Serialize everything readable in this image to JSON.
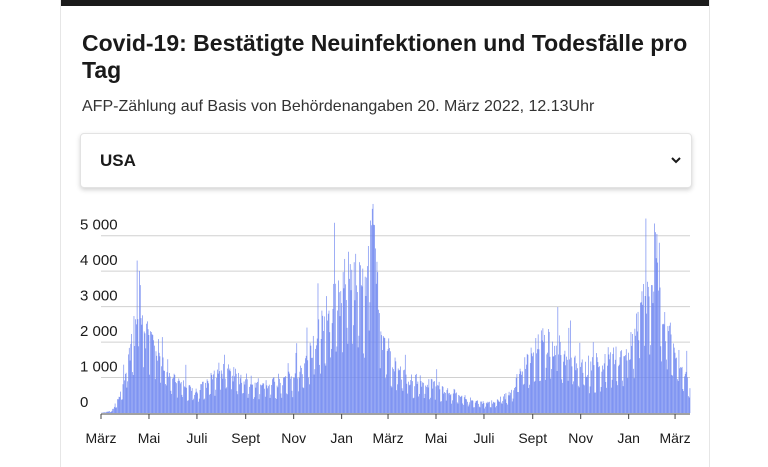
{
  "header": {
    "title": "Covid-19: Bestätigte Neuinfektionen und Todesfälle pro Tag",
    "subtitle": "AFP-Zählung auf Basis von Behördenangaben 20. März 2022, 12.13Uhr"
  },
  "country_select": {
    "selected": "USA",
    "icon": "chevron-down-icon"
  },
  "colors": {
    "bar": "#6f87f0",
    "grid": "#d0d0d0",
    "axis": "#444444"
  },
  "chart_data": {
    "type": "bar",
    "title": "Covid-19: Bestätigte Neuinfektionen und Todesfälle pro Tag",
    "xlabel": "",
    "ylabel": "",
    "ylim": [
      0,
      5500
    ],
    "yticks": [
      0,
      1000,
      2000,
      3000,
      4000,
      5000
    ],
    "ytick_labels": [
      "0",
      "1 000",
      "2 000",
      "3 000",
      "4 000",
      "5 000"
    ],
    "xtick_labels": [
      "März",
      "Mai",
      "Juli",
      "Sept",
      "Nov",
      "Jan",
      "März",
      "Mai",
      "Juli",
      "Sept",
      "Nov",
      "Jan",
      "März"
    ],
    "x_start": "2020-03-01",
    "x_end": "2022-03-20",
    "grid": true,
    "series": [
      {
        "values": [
          {
            "x": "2020-03-01",
            "y": 2
          },
          {
            "x": "2020-03-15",
            "y": 60
          },
          {
            "x": "2020-03-25",
            "y": 450
          },
          {
            "x": "2020-04-01",
            "y": 1100
          },
          {
            "x": "2020-04-08",
            "y": 1950
          },
          {
            "x": "2020-04-15",
            "y": 2500
          },
          {
            "x": "2020-04-16",
            "y": 4300
          },
          {
            "x": "2020-04-25",
            "y": 2300
          },
          {
            "x": "2020-05-01",
            "y": 2200
          },
          {
            "x": "2020-05-08",
            "y": 1900
          },
          {
            "x": "2020-05-15",
            "y": 1600
          },
          {
            "x": "2020-06-01",
            "y": 1000
          },
          {
            "x": "2020-06-15",
            "y": 750
          },
          {
            "x": "2020-07-01",
            "y": 600
          },
          {
            "x": "2020-07-15",
            "y": 900
          },
          {
            "x": "2020-08-01",
            "y": 1200
          },
          {
            "x": "2020-08-15",
            "y": 1050
          },
          {
            "x": "2020-09-01",
            "y": 950
          },
          {
            "x": "2020-09-15",
            "y": 850
          },
          {
            "x": "2020-10-01",
            "y": 800
          },
          {
            "x": "2020-10-15",
            "y": 850
          },
          {
            "x": "2020-11-01",
            "y": 1000
          },
          {
            "x": "2020-11-15",
            "y": 1400
          },
          {
            "x": "2020-12-01",
            "y": 2100
          },
          {
            "x": "2020-12-15",
            "y": 2800
          },
          {
            "x": "2021-01-01",
            "y": 3100
          },
          {
            "x": "2021-01-12",
            "y": 4200
          },
          {
            "x": "2021-01-20",
            "y": 3600
          },
          {
            "x": "2021-02-01",
            "y": 3300
          },
          {
            "x": "2021-02-12",
            "y": 5300
          },
          {
            "x": "2021-02-20",
            "y": 2300
          },
          {
            "x": "2021-03-01",
            "y": 1800
          },
          {
            "x": "2021-03-15",
            "y": 1200
          },
          {
            "x": "2021-04-01",
            "y": 900
          },
          {
            "x": "2021-04-15",
            "y": 850
          },
          {
            "x": "2021-05-01",
            "y": 750
          },
          {
            "x": "2021-05-15",
            "y": 650
          },
          {
            "x": "2021-06-01",
            "y": 450
          },
          {
            "x": "2021-06-15",
            "y": 350
          },
          {
            "x": "2021-07-01",
            "y": 280
          },
          {
            "x": "2021-07-15",
            "y": 300
          },
          {
            "x": "2021-08-01",
            "y": 500
          },
          {
            "x": "2021-08-15",
            "y": 1100
          },
          {
            "x": "2021-09-01",
            "y": 1600
          },
          {
            "x": "2021-09-15",
            "y": 2000
          },
          {
            "x": "2021-10-01",
            "y": 1900
          },
          {
            "x": "2021-10-15",
            "y": 1500
          },
          {
            "x": "2021-11-01",
            "y": 1300
          },
          {
            "x": "2021-11-15",
            "y": 1200
          },
          {
            "x": "2021-12-01",
            "y": 1400
          },
          {
            "x": "2021-12-15",
            "y": 1500
          },
          {
            "x": "2022-01-01",
            "y": 1700
          },
          {
            "x": "2022-01-12",
            "y": 2300
          },
          {
            "x": "2022-01-22",
            "y": 3300
          },
          {
            "x": "2022-02-01",
            "y": 3100
          },
          {
            "x": "2022-02-04",
            "y": 5100
          },
          {
            "x": "2022-02-15",
            "y": 2500
          },
          {
            "x": "2022-03-01",
            "y": 1700
          },
          {
            "x": "2022-03-10",
            "y": 1300
          },
          {
            "x": "2022-03-20",
            "y": 700
          }
        ]
      }
    ]
  }
}
